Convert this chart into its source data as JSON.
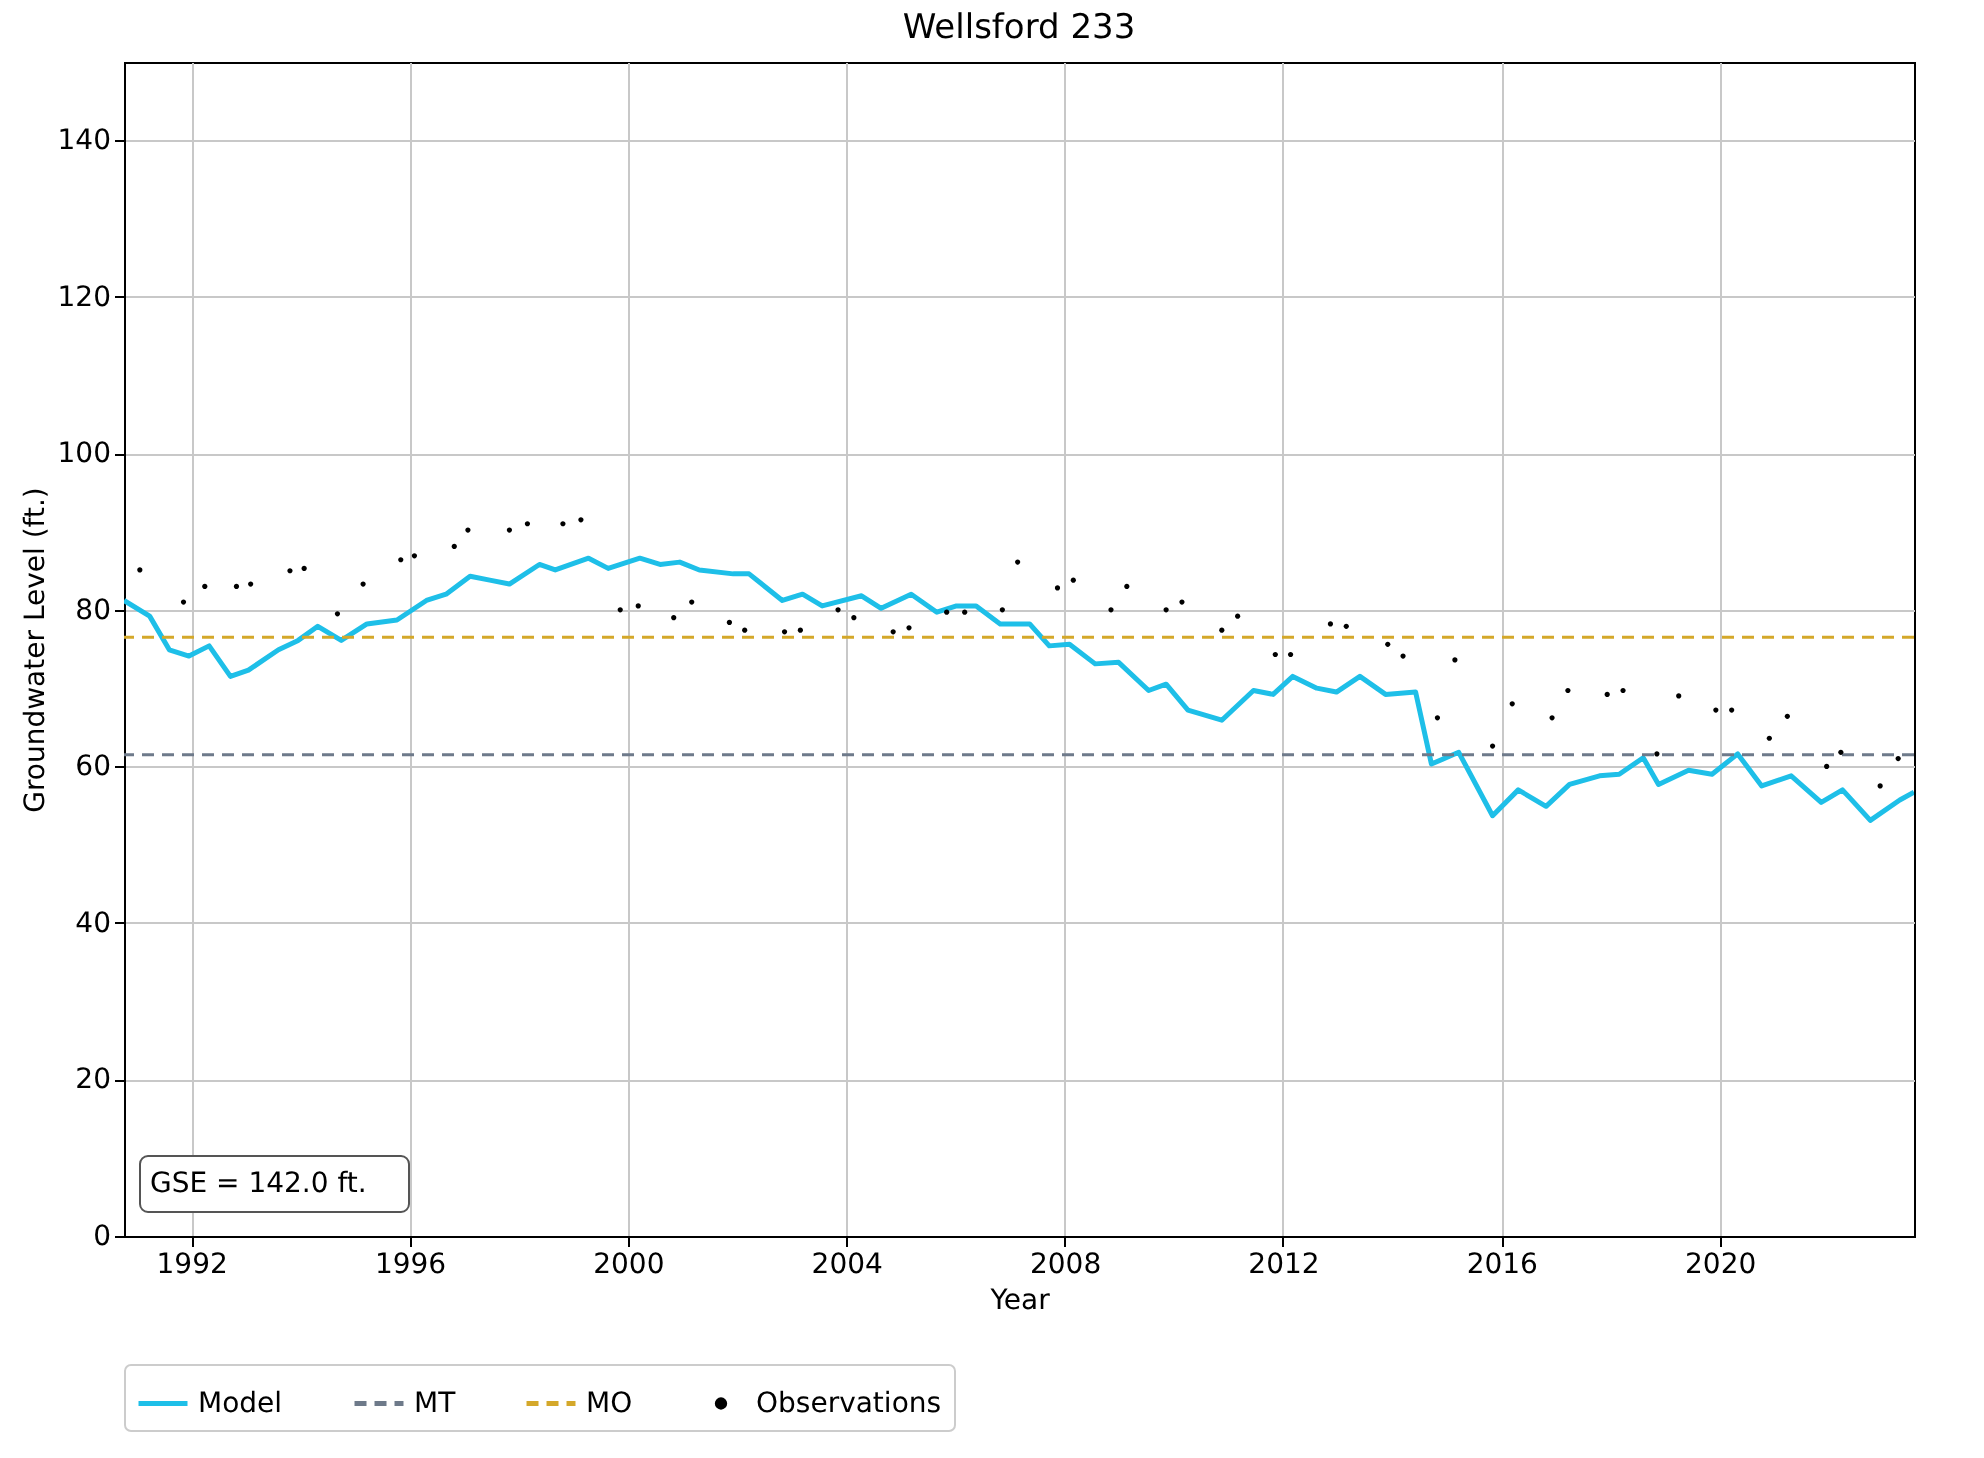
{
  "chart_data": {
    "type": "line",
    "title": "Wellsford 233",
    "xlabel": "Year",
    "ylabel": "Groundwater Level (ft.)",
    "xlim": [
      1990.77,
      2023.56
    ],
    "xticks": [
      1992,
      1996,
      2000,
      2004,
      2008,
      2012,
      2016,
      2020
    ],
    "ylim": [
      0,
      150
    ],
    "yticks": [
      0,
      20,
      40,
      60,
      80,
      100,
      120,
      140
    ],
    "grid": true,
    "legend": "bottom",
    "annotations": [
      "GSE = 142.0 ft."
    ],
    "ref_lines": [
      {
        "axis": "y",
        "value": 61.5,
        "label": "MT",
        "color": "#6e7a8a",
        "line_style": "dashed"
      },
      {
        "axis": "y",
        "value": 76.5,
        "label": "MO",
        "color": "#d4a82a",
        "line_style": "dashed"
      }
    ],
    "series": [
      {
        "name": "Model",
        "color": "#1ebfe8",
        "line_style": "solid",
        "marker": "none",
        "x": [
          1990.77,
          1991.24,
          1991.6,
          1991.96,
          1992.33,
          1992.72,
          1993.05,
          1993.6,
          1993.96,
          1994.32,
          1994.75,
          1995.22,
          1995.77,
          1996.31,
          1996.67,
          1997.11,
          1997.47,
          1997.83,
          1998.38,
          1998.67,
          1999.28,
          1999.64,
          2000.22,
          2000.59,
          2000.95,
          2001.31,
          2001.93,
          2002.22,
          2002.83,
          2003.2,
          2003.56,
          2004.28,
          2004.64,
          2005.19,
          2005.66,
          2006.02,
          2006.38,
          2006.82,
          2007.36,
          2007.72,
          2008.09,
          2008.56,
          2008.99,
          2009.54,
          2009.86,
          2010.26,
          2010.88,
          2011.46,
          2011.82,
          2012.18,
          2012.62,
          2012.98,
          2013.41,
          2013.88,
          2014.43,
          2014.72,
          2015.22,
          2015.84,
          2016.31,
          2016.82,
          2017.25,
          2017.8,
          2018.16,
          2018.6,
          2018.88,
          2019.43,
          2019.86,
          2020.33,
          2020.77,
          2021.31,
          2021.86,
          2022.25,
          2022.76,
          2023.3,
          2023.56
        ],
        "values": [
          81.2,
          79.2,
          74.9,
          74.1,
          75.4,
          71.5,
          72.3,
          74.9,
          76.1,
          77.9,
          76.1,
          78.2,
          78.7,
          81.2,
          82,
          84.3,
          83.8,
          83.3,
          85.8,
          85.1,
          86.6,
          85.3,
          86.6,
          85.8,
          86.1,
          85.1,
          84.6,
          84.6,
          81.2,
          82,
          80.5,
          81.8,
          80.2,
          82,
          79.7,
          80.5,
          80.5,
          78.2,
          78.2,
          75.4,
          75.6,
          73.1,
          73.3,
          69.7,
          70.5,
          67.2,
          65.9,
          69.7,
          69.2,
          71.5,
          70,
          69.5,
          71.5,
          69.2,
          69.5,
          60.3,
          61.8,
          53.7,
          57,
          54.9,
          57.7,
          58.8,
          59,
          61.1,
          57.7,
          59.5,
          59,
          61.6,
          57.5,
          58.8,
          55.4,
          57,
          53.1,
          55.7,
          56.7
        ]
      },
      {
        "name": "Observations",
        "type": "scatter",
        "color": "#000000",
        "marker": "circle",
        "x": [
          1991.06,
          1991.86,
          1992.25,
          1992.83,
          1993.09,
          1993.81,
          1994.07,
          1994.68,
          1995.15,
          1995.84,
          1996.09,
          1996.82,
          1997.07,
          1997.83,
          1998.16,
          1998.81,
          1999.14,
          1999.86,
          2000.19,
          2000.84,
          2001.17,
          2001.86,
          2002.14,
          2002.87,
          2003.16,
          2003.85,
          2004.14,
          2004.86,
          2005.15,
          2005.84,
          2006.17,
          2006.86,
          2007.14,
          2007.87,
          2008.16,
          2008.85,
          2009.14,
          2009.86,
          2010.15,
          2010.88,
          2011.17,
          2011.86,
          2012.14,
          2012.87,
          2013.16,
          2013.92,
          2014.2,
          2014.83,
          2015.15,
          2015.84,
          2016.2,
          2016.93,
          2017.22,
          2017.94,
          2018.23,
          2018.85,
          2019.25,
          2019.93,
          2020.22,
          2020.91,
          2021.24,
          2021.96,
          2022.22,
          2022.94,
          2023.27
        ],
        "values": [
          85.1,
          81,
          83,
          83,
          83.3,
          85,
          85.3,
          79.5,
          83.3,
          86.4,
          86.9,
          88.1,
          90.2,
          90.2,
          91,
          91,
          91.5,
          80,
          80.5,
          79,
          81,
          78.4,
          77.4,
          77.2,
          77.4,
          80,
          79,
          77.2,
          77.7,
          79.7,
          79.7,
          80,
          86.1,
          82.8,
          83.8,
          80,
          83,
          80,
          81,
          77.4,
          79.2,
          74.3,
          74.3,
          78.2,
          77.9,
          75.6,
          74.1,
          66.2,
          73.6,
          62.6,
          68,
          66.2,
          69.7,
          69.2,
          69.7,
          61.6,
          69,
          67.2,
          67.2,
          63.6,
          66.4,
          60,
          61.8,
          57.5,
          61
        ]
      }
    ]
  }
}
